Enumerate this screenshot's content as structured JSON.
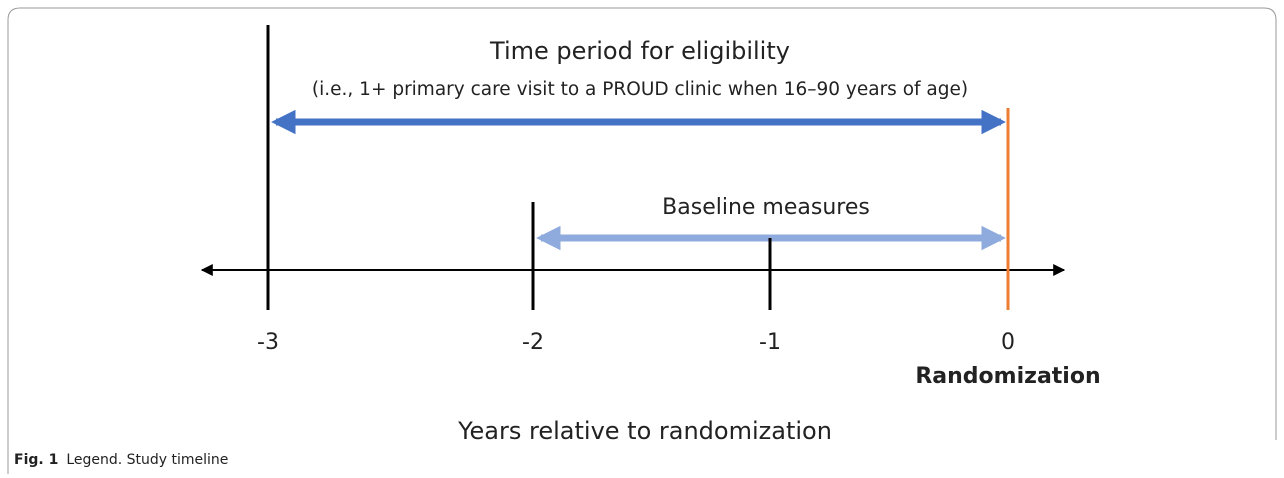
{
  "figure": {
    "eligibility": {
      "title": "Time period for eligibility",
      "detail": "(i.e., 1+ primary care visit to a PROUD clinic when 16–90 years of age)"
    },
    "baseline": "Baseline measures",
    "ticks": [
      "-3",
      "-2",
      "-1",
      "0"
    ],
    "event": "Randomization",
    "axis_label": "Years relative to randomization",
    "caption": {
      "label": "Fig. 1",
      "text": "Legend. Study timeline"
    }
  }
}
